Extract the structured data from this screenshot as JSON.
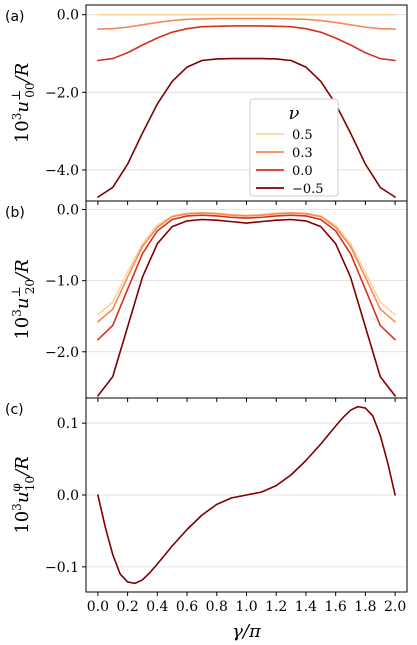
{
  "chart_data": [
    {
      "panel": "(a)",
      "type": "line",
      "ylabel": "10^3 u^⊥_00 / R",
      "ylabel_parts": {
        "prefix": "10",
        "exp": "3",
        "var": "u",
        "sup": "⊥",
        "sub": "00",
        "suffix": "/R"
      },
      "ylim": [
        -4.8,
        0.25
      ],
      "yticks": [
        0.0,
        -2.0,
        -4.0
      ],
      "ytick_labels": [
        "0.0",
        "−2.0",
        "−4.0"
      ],
      "legend": {
        "title": "ν",
        "placement": "center-right",
        "entries": [
          "0.5",
          "0.3",
          "0.0",
          "−0.5"
        ]
      },
      "series": [
        {
          "name": "0.5",
          "color": "#fdd49e",
          "x": [
            0,
            0.1,
            0.2,
            0.3,
            0.4,
            0.5,
            0.6,
            0.7,
            0.8,
            0.9,
            1.0,
            1.1,
            1.2,
            1.3,
            1.4,
            1.5,
            1.6,
            1.7,
            1.8,
            1.9,
            2.0
          ],
          "y": [
            0,
            0,
            0,
            0,
            0,
            0,
            0,
            0,
            0,
            0,
            0,
            0,
            0,
            0,
            0,
            0,
            0,
            0,
            0,
            0,
            0
          ]
        },
        {
          "name": "0.3",
          "color": "#f58a52",
          "x": [
            0,
            0.1,
            0.2,
            0.3,
            0.4,
            0.5,
            0.6,
            0.7,
            0.8,
            0.9,
            1.0,
            1.1,
            1.2,
            1.3,
            1.4,
            1.5,
            1.6,
            1.7,
            1.8,
            1.9,
            2.0
          ],
          "y": [
            -0.37,
            -0.36,
            -0.32,
            -0.26,
            -0.2,
            -0.15,
            -0.12,
            -0.11,
            -0.1,
            -0.1,
            -0.1,
            -0.1,
            -0.1,
            -0.11,
            -0.12,
            -0.15,
            -0.2,
            -0.26,
            -0.32,
            -0.36,
            -0.37
          ]
        },
        {
          "name": "0.0",
          "color": "#d7301f",
          "x": [
            0,
            0.1,
            0.2,
            0.3,
            0.4,
            0.5,
            0.6,
            0.7,
            0.8,
            0.9,
            1.0,
            1.1,
            1.2,
            1.3,
            1.4,
            1.5,
            1.6,
            1.7,
            1.8,
            1.9,
            2.0
          ],
          "y": [
            -1.18,
            -1.13,
            -0.98,
            -0.78,
            -0.6,
            -0.45,
            -0.36,
            -0.31,
            -0.3,
            -0.29,
            -0.29,
            -0.29,
            -0.3,
            -0.31,
            -0.36,
            -0.45,
            -0.6,
            -0.78,
            -0.98,
            -1.13,
            -1.18
          ]
        },
        {
          "name": "−0.5",
          "color": "#7f0000",
          "x": [
            0,
            0.1,
            0.2,
            0.3,
            0.4,
            0.5,
            0.6,
            0.7,
            0.8,
            0.9,
            1.0,
            1.1,
            1.2,
            1.3,
            1.4,
            1.5,
            1.6,
            1.7,
            1.8,
            1.9,
            2.0
          ],
          "y": [
            -4.7,
            -4.45,
            -3.85,
            -3.05,
            -2.3,
            -1.72,
            -1.35,
            -1.18,
            -1.14,
            -1.13,
            -1.13,
            -1.13,
            -1.14,
            -1.18,
            -1.35,
            -1.72,
            -2.3,
            -3.05,
            -3.85,
            -4.45,
            -4.7
          ]
        }
      ]
    },
    {
      "panel": "(b)",
      "type": "line",
      "ylabel": "10^3 u^⊥_20 / R",
      "ylabel_parts": {
        "prefix": "10",
        "exp": "3",
        "var": "u",
        "sup": "⊥",
        "sub": "20",
        "suffix": "/R"
      },
      "ylim": [
        -2.65,
        0.12
      ],
      "yticks": [
        0.0,
        -1.0,
        -2.0
      ],
      "ytick_labels": [
        "0.0",
        "−1.0",
        "−2.0"
      ],
      "series": [
        {
          "name": "0.5",
          "color": "#fdd49e",
          "x": [
            0,
            0.1,
            0.2,
            0.3,
            0.4,
            0.5,
            0.6,
            0.7,
            0.8,
            0.9,
            1.0,
            1.1,
            1.2,
            1.3,
            1.4,
            1.5,
            1.6,
            1.7,
            1.8,
            1.9,
            2.0
          ],
          "y": [
            -1.48,
            -1.3,
            -0.88,
            -0.48,
            -0.22,
            -0.09,
            -0.05,
            -0.04,
            -0.05,
            -0.07,
            -0.08,
            -0.07,
            -0.05,
            -0.04,
            -0.05,
            -0.09,
            -0.22,
            -0.48,
            -0.88,
            -1.3,
            -1.48
          ]
        },
        {
          "name": "0.3",
          "color": "#f58a52",
          "x": [
            0,
            0.1,
            0.2,
            0.3,
            0.4,
            0.5,
            0.6,
            0.7,
            0.8,
            0.9,
            1.0,
            1.1,
            1.2,
            1.3,
            1.4,
            1.5,
            1.6,
            1.7,
            1.8,
            1.9,
            2.0
          ],
          "y": [
            -1.58,
            -1.4,
            -0.95,
            -0.52,
            -0.25,
            -0.1,
            -0.06,
            -0.05,
            -0.06,
            -0.08,
            -0.09,
            -0.08,
            -0.06,
            -0.05,
            -0.06,
            -0.1,
            -0.25,
            -0.52,
            -0.95,
            -1.4,
            -1.58
          ]
        },
        {
          "name": "0.0",
          "color": "#d7301f",
          "x": [
            0,
            0.1,
            0.2,
            0.3,
            0.4,
            0.5,
            0.6,
            0.7,
            0.8,
            0.9,
            1.0,
            1.1,
            1.2,
            1.3,
            1.4,
            1.5,
            1.6,
            1.7,
            1.8,
            1.9,
            2.0
          ],
          "y": [
            -1.83,
            -1.63,
            -1.12,
            -0.62,
            -0.3,
            -0.14,
            -0.09,
            -0.08,
            -0.09,
            -0.11,
            -0.12,
            -0.11,
            -0.09,
            -0.08,
            -0.09,
            -0.14,
            -0.3,
            -0.62,
            -1.12,
            -1.63,
            -1.83
          ]
        },
        {
          "name": "−0.5",
          "color": "#7f0000",
          "x": [
            0,
            0.1,
            0.2,
            0.3,
            0.4,
            0.5,
            0.6,
            0.7,
            0.8,
            0.9,
            1.0,
            1.1,
            1.2,
            1.3,
            1.4,
            1.5,
            1.6,
            1.7,
            1.8,
            1.9,
            2.0
          ],
          "y": [
            -2.62,
            -2.35,
            -1.65,
            -0.95,
            -0.48,
            -0.24,
            -0.16,
            -0.14,
            -0.15,
            -0.17,
            -0.19,
            -0.17,
            -0.15,
            -0.14,
            -0.16,
            -0.24,
            -0.48,
            -0.95,
            -1.65,
            -2.35,
            -2.62
          ]
        }
      ]
    },
    {
      "panel": "(c)",
      "type": "line",
      "ylabel": "10^3 u^φ_10 / R",
      "ylabel_parts": {
        "prefix": "10",
        "exp": "3",
        "var": "u",
        "sup": "φ",
        "sub": "10",
        "suffix": "/R"
      },
      "ylim": [
        -0.135,
        0.135
      ],
      "yticks": [
        0.1,
        0.0,
        -0.1
      ],
      "ytick_labels": [
        "0.1",
        "0.0",
        "−0.1"
      ],
      "series": [
        {
          "name": "−0.5",
          "color": "#7f0000",
          "x": [
            0,
            0.05,
            0.1,
            0.15,
            0.2,
            0.25,
            0.3,
            0.35,
            0.4,
            0.5,
            0.6,
            0.7,
            0.8,
            0.9,
            1.0,
            1.1,
            1.2,
            1.3,
            1.4,
            1.5,
            1.6,
            1.65,
            1.7,
            1.75,
            1.8,
            1.85,
            1.9,
            1.95,
            2.0
          ],
          "y": [
            0,
            -0.045,
            -0.083,
            -0.11,
            -0.121,
            -0.123,
            -0.118,
            -0.108,
            -0.096,
            -0.071,
            -0.048,
            -0.028,
            -0.013,
            -0.004,
            0,
            0.004,
            0.013,
            0.028,
            0.048,
            0.071,
            0.096,
            0.108,
            0.118,
            0.123,
            0.121,
            0.11,
            0.083,
            0.045,
            0
          ]
        }
      ]
    }
  ],
  "xaxis": {
    "label": "γ/π",
    "xlim": [
      -0.08,
      2.08
    ],
    "ticks": [
      0.0,
      0.2,
      0.4,
      0.6,
      0.8,
      1.0,
      1.2,
      1.4,
      1.6,
      1.8,
      2.0
    ],
    "tick_labels": [
      "0.0",
      "0.2",
      "0.4",
      "0.6",
      "0.8",
      "1.0",
      "1.2",
      "1.4",
      "1.6",
      "1.8",
      "2.0"
    ]
  },
  "grid": "horizontal"
}
